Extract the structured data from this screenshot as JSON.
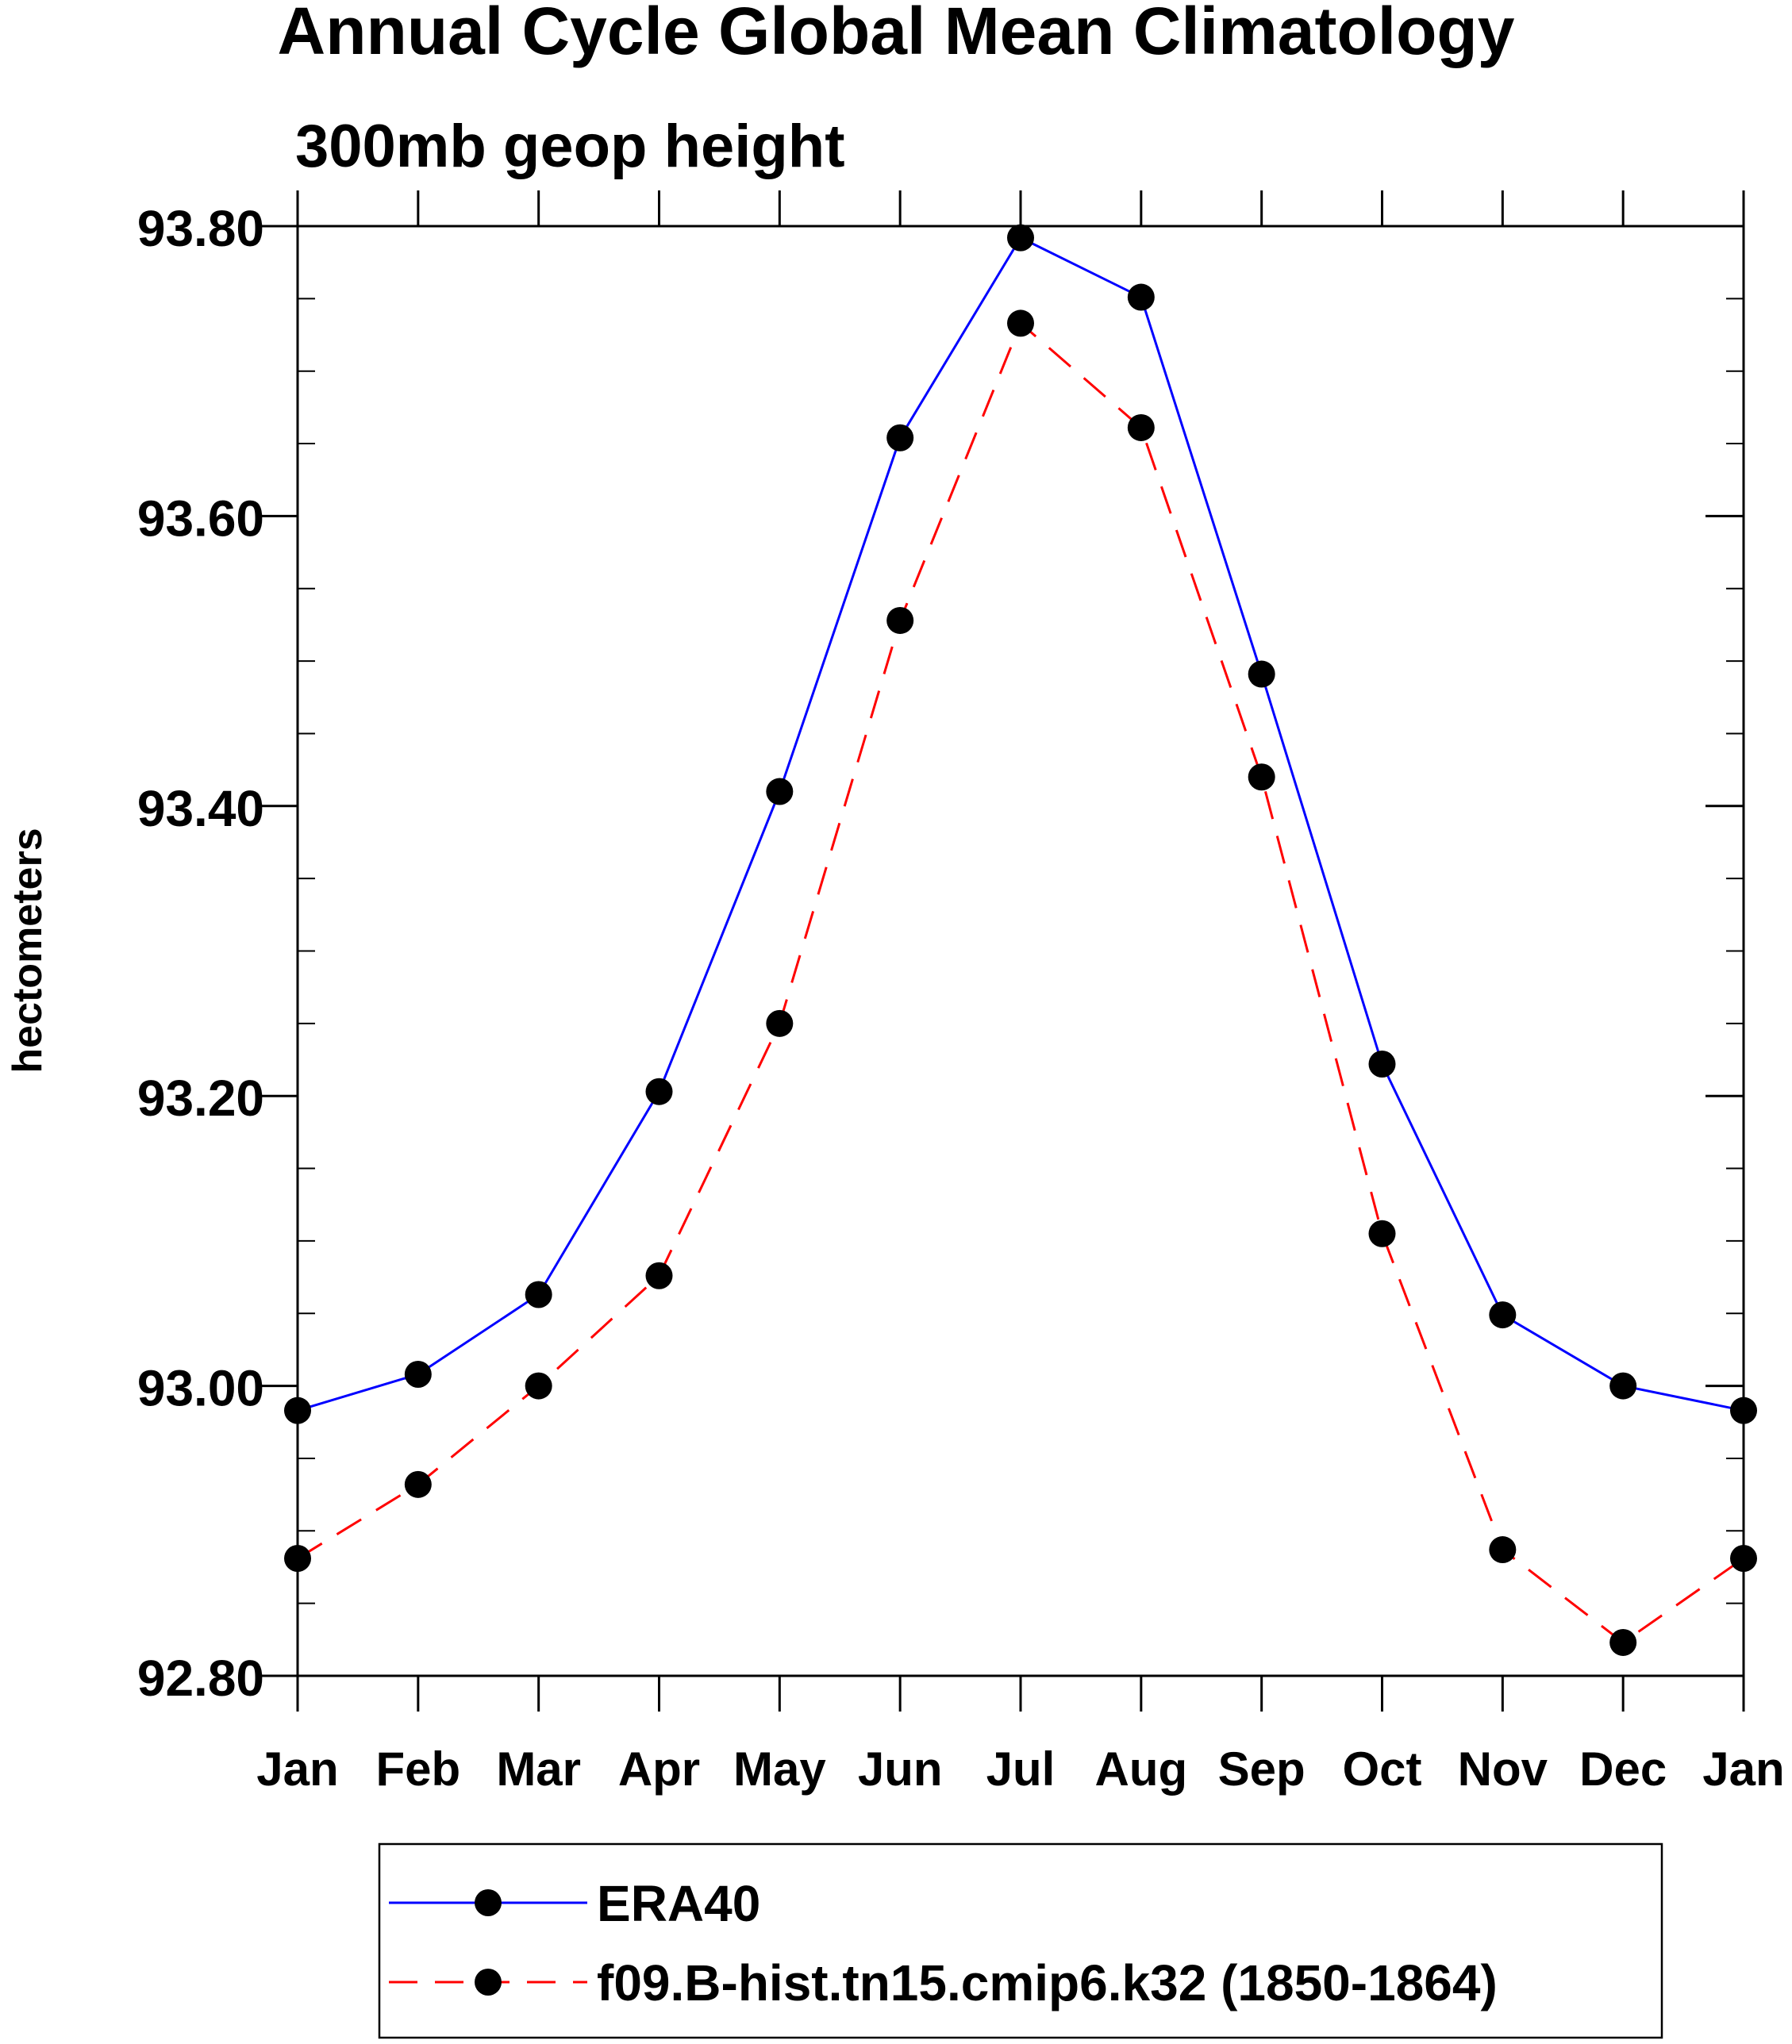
{
  "chart_data": {
    "type": "line",
    "title": "Annual Cycle Global Mean Climatology",
    "subtitle": "300mb geop height",
    "xlabel": "",
    "ylabel": "hectometers",
    "categories": [
      "Jan",
      "Feb",
      "Mar",
      "Apr",
      "May",
      "Jun",
      "Jul",
      "Aug",
      "Sep",
      "Oct",
      "Nov",
      "Dec",
      "Jan"
    ],
    "ylim": [
      92.8,
      93.8
    ],
    "yticks": [
      "93.80",
      "93.60",
      "93.40",
      "93.20",
      "93.00",
      "92.80"
    ],
    "ytick_values": [
      93.8,
      93.6,
      93.4,
      93.2,
      93.0,
      92.8
    ],
    "legend_position": "bottom",
    "series": [
      {
        "name": "ERA40",
        "color": "#0000ff",
        "dash": "solid",
        "values": [
          92.983,
          93.008,
          93.063,
          93.203,
          93.41,
          93.654,
          93.792,
          93.751,
          93.491,
          93.222,
          93.049,
          93.0,
          92.983
        ]
      },
      {
        "name": "f09.B-hist.tn15.cmip6.k32 (1850-1864)",
        "color": "#ff0000",
        "dash": "dashed",
        "values": [
          92.881,
          92.932,
          93.0,
          93.076,
          93.25,
          93.528,
          93.733,
          93.661,
          93.42,
          93.105,
          92.887,
          92.823,
          92.881
        ]
      }
    ]
  }
}
